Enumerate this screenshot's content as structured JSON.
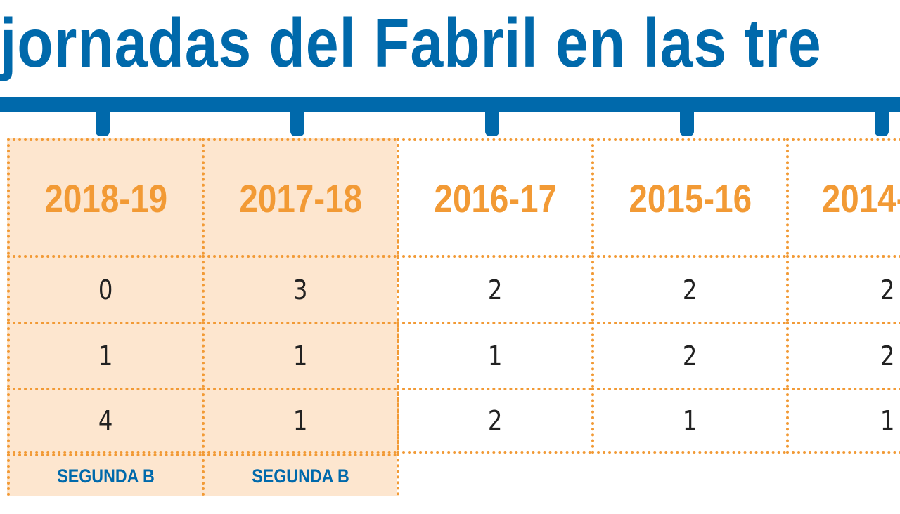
{
  "title": "jornadas del Fabril en las tre",
  "colors": {
    "brand_blue": "#0069ab",
    "accent_orange": "#f29a35",
    "highlight_fill": "#fde6cf",
    "value_text": "#222222"
  },
  "table": {
    "columns": [
      {
        "season": "2018-19",
        "values": [
          "0",
          "1",
          "4"
        ],
        "league": "SEGUNDA B",
        "highlighted": true
      },
      {
        "season": "2017-18",
        "values": [
          "3",
          "1",
          "1"
        ],
        "league": "SEGUNDA B",
        "highlighted": true
      },
      {
        "season": "2016-17",
        "values": [
          "2",
          "1",
          "2"
        ],
        "league": "",
        "highlighted": false
      },
      {
        "season": "2015-16",
        "values": [
          "2",
          "2",
          "1"
        ],
        "league": "",
        "highlighted": false
      },
      {
        "season": "2014-",
        "values": [
          "2",
          "2",
          "1"
        ],
        "league": "",
        "highlighted": false
      }
    ]
  }
}
